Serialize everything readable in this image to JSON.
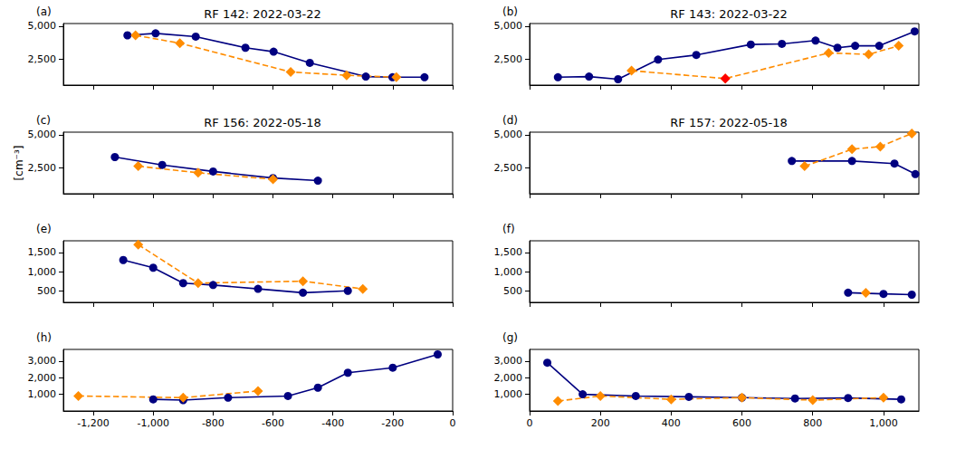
{
  "chart_data": [
    {
      "type": "line",
      "title": "RF 142: 2022-03-22",
      "annotation": "(a)",
      "xlim": [
        -1300,
        0
      ],
      "xticks": [
        -1200,
        -1000,
        -800,
        -600,
        -400,
        -200,
        0
      ],
      "ylim": [
        500,
        5200
      ],
      "yticks": [
        2500,
        5000
      ],
      "tick_labels": "y",
      "series": [
        {
          "color": "#000080",
          "marker": "circle",
          "line_style": "solid",
          "x": [
            -1086,
            -992,
            -858,
            -692,
            -598,
            -477,
            -290,
            -201,
            -94
          ],
          "values": [
            4300,
            4450,
            4200,
            3350,
            3050,
            2200,
            1150,
            1100,
            1100
          ]
        },
        {
          "color": "#ff8c00",
          "marker": "diamond",
          "line_style": "dashed",
          "x": [
            -1059,
            -911,
            -541,
            -354,
            -188
          ],
          "values": [
            4300,
            3700,
            1500,
            1250,
            1100
          ]
        }
      ]
    },
    {
      "type": "line",
      "title": "RF 143: 2022-03-22",
      "annotation": "(b)",
      "xlim": [
        0,
        1100
      ],
      "xticks": [
        0,
        200,
        400,
        600,
        800,
        1000
      ],
      "ylim": [
        500,
        5200
      ],
      "yticks": [
        2500,
        5000
      ],
      "tick_labels": "y",
      "series": [
        {
          "color": "#000080",
          "marker": "circle",
          "line_style": "solid",
          "x": [
            80,
            168,
            250,
            363,
            471,
            625,
            713,
            808,
            870,
            920,
            988,
            1088
          ],
          "values": [
            1100,
            1150,
            950,
            2450,
            2800,
            3600,
            3650,
            3900,
            3350,
            3500,
            3500,
            4600
          ]
        },
        {
          "color": "#ff8c00",
          "marker": "diamond",
          "line_style": "dashed",
          "x": [
            288,
            553,
            845,
            958,
            1043
          ],
          "values": [
            1600,
            1000,
            2950,
            2850,
            3500
          ]
        },
        {
          "color": "#ff0000",
          "marker": "diamond",
          "line_style": "none",
          "x": [
            553
          ],
          "values": [
            1000
          ]
        }
      ]
    },
    {
      "type": "line",
      "title": "RF 156: 2022-05-18",
      "annotation": "(c)",
      "ylabel": "[cm⁻³]",
      "xlim": [
        -1300,
        0
      ],
      "xticks": [
        -1200,
        -1000,
        -800,
        -600,
        -400,
        -200,
        0
      ],
      "ylim": [
        500,
        5200
      ],
      "yticks": [
        2500,
        5000
      ],
      "tick_labels": "y",
      "series": [
        {
          "color": "#000080",
          "marker": "circle",
          "line_style": "solid",
          "x": [
            -1128,
            -970,
            -800,
            -600,
            -450
          ],
          "values": [
            3300,
            2700,
            2200,
            1700,
            1500
          ]
        },
        {
          "color": "#ff8c00",
          "marker": "diamond",
          "line_style": "dashed",
          "x": [
            -1050,
            -850,
            -600
          ],
          "values": [
            2600,
            2100,
            1600
          ]
        }
      ]
    },
    {
      "type": "line",
      "title": "RF 157: 2022-05-18",
      "annotation": "(d)",
      "xlim": [
        0,
        1100
      ],
      "xticks": [
        0,
        200,
        400,
        600,
        800,
        1000
      ],
      "ylim": [
        500,
        5200
      ],
      "yticks": [
        2500,
        5000
      ],
      "tick_labels": "y",
      "series": [
        {
          "color": "#000080",
          "marker": "circle",
          "line_style": "solid",
          "x": [
            741,
            911,
            1031,
            1090
          ],
          "values": [
            3000,
            3000,
            2800,
            2000
          ]
        },
        {
          "color": "#ff8c00",
          "marker": "diamond",
          "line_style": "dashed",
          "x": [
            777,
            911,
            991,
            1080
          ],
          "values": [
            2600,
            3900,
            4100,
            5100
          ]
        }
      ]
    },
    {
      "type": "line",
      "annotation": "(e)",
      "xlim": [
        -1300,
        0
      ],
      "xticks": [
        -1200,
        -1000,
        -800,
        -600,
        -400,
        -200,
        0
      ],
      "ylim": [
        200,
        1800
      ],
      "yticks": [
        500,
        1000,
        1500
      ],
      "tick_labels": "y",
      "series": [
        {
          "color": "#000080",
          "marker": "circle",
          "line_style": "solid",
          "x": [
            -1100,
            -1000,
            -900,
            -800,
            -650,
            -500,
            -350
          ],
          "values": [
            1300,
            1100,
            700,
            650,
            550,
            450,
            500
          ]
        },
        {
          "color": "#ff8c00",
          "marker": "diamond",
          "line_style": "dashed",
          "x": [
            -1050,
            -850,
            -500,
            -300
          ],
          "values": [
            1700,
            700,
            750,
            550
          ]
        }
      ]
    },
    {
      "type": "line",
      "annotation": "(f)",
      "xlim": [
        0,
        1100
      ],
      "xticks": [
        0,
        200,
        400,
        600,
        800,
        1000
      ],
      "ylim": [
        200,
        1800
      ],
      "yticks": [
        500,
        1000,
        1500
      ],
      "tick_labels": "y",
      "series": [
        {
          "color": "#000080",
          "marker": "circle",
          "line_style": "solid",
          "x": [
            900,
            1000,
            1080
          ],
          "values": [
            450,
            420,
            400
          ]
        },
        {
          "color": "#ff8c00",
          "marker": "diamond",
          "line_style": "dashed",
          "x": [
            950
          ],
          "values": [
            450
          ]
        }
      ]
    },
    {
      "type": "line",
      "annotation": "(h)",
      "xlim": [
        -1300,
        0
      ],
      "xticks": [
        -1200,
        -1000,
        -800,
        -600,
        -400,
        -200,
        0
      ],
      "ylim": [
        0,
        3700
      ],
      "yticks": [
        1000,
        2000,
        3000
      ],
      "series": [
        {
          "color": "#000080",
          "marker": "circle",
          "line_style": "solid",
          "x": [
            -1000,
            -900,
            -750,
            -550,
            -450,
            -350,
            -200,
            -50
          ],
          "values": [
            700,
            650,
            800,
            900,
            1400,
            2300,
            2600,
            3400
          ]
        },
        {
          "color": "#ff8c00",
          "marker": "diamond",
          "line_style": "dashed",
          "x": [
            -1250,
            -900,
            -650
          ],
          "values": [
            900,
            800,
            1200
          ]
        }
      ]
    },
    {
      "type": "line",
      "annotation": "(g)",
      "xlim": [
        0,
        1100
      ],
      "xticks": [
        0,
        200,
        400,
        600,
        800,
        1000
      ],
      "ylim": [
        0,
        3700
      ],
      "yticks": [
        1000,
        2000,
        3000
      ],
      "series": [
        {
          "color": "#000080",
          "marker": "circle",
          "line_style": "solid",
          "x": [
            50,
            150,
            300,
            450,
            600,
            750,
            900,
            1050
          ],
          "values": [
            2900,
            1000,
            900,
            850,
            800,
            750,
            780,
            700
          ]
        },
        {
          "color": "#ff8c00",
          "marker": "diamond",
          "line_style": "dashed",
          "x": [
            80,
            200,
            400,
            600,
            800,
            1000
          ],
          "values": [
            600,
            900,
            700,
            800,
            650,
            800
          ]
        }
      ]
    }
  ]
}
